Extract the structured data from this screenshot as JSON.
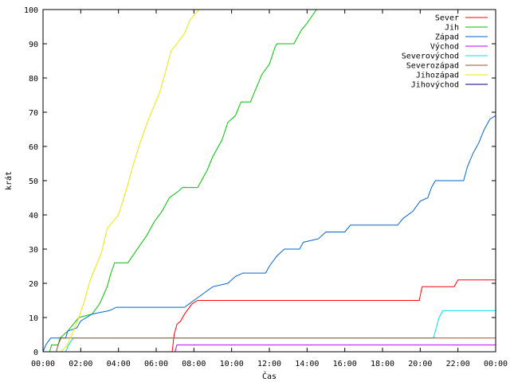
{
  "chart_data": {
    "type": "line",
    "title": "",
    "xlabel": "Čas",
    "ylabel": "krát",
    "ylim": [
      0,
      100
    ],
    "xlim_hours": [
      0,
      24
    ],
    "grid": false,
    "legend_position": "top-right",
    "x_ticks": [
      {
        "h": 0,
        "label": "00:00"
      },
      {
        "h": 2,
        "label": "02:00"
      },
      {
        "h": 4,
        "label": "04:00"
      },
      {
        "h": 6,
        "label": "06:00"
      },
      {
        "h": 8,
        "label": "08:00"
      },
      {
        "h": 10,
        "label": "10:00"
      },
      {
        "h": 12,
        "label": "12:00"
      },
      {
        "h": 14,
        "label": "14:00"
      },
      {
        "h": 16,
        "label": "16:00"
      },
      {
        "h": 18,
        "label": "18:00"
      },
      {
        "h": 20,
        "label": "20:00"
      },
      {
        "h": 22,
        "label": "22:00"
      },
      {
        "h": 24,
        "label": "00:00"
      }
    ],
    "y_ticks": [
      0,
      10,
      20,
      30,
      40,
      50,
      60,
      70,
      80,
      90,
      100
    ],
    "series": [
      {
        "name": "Sever",
        "color": "#ff0000",
        "points": [
          [
            6.85,
            0
          ],
          [
            6.95,
            5
          ],
          [
            7.1,
            8
          ],
          [
            7.3,
            9
          ],
          [
            7.5,
            11
          ],
          [
            7.9,
            14
          ],
          [
            8.2,
            15
          ],
          [
            19.95,
            15
          ],
          [
            20.1,
            19
          ],
          [
            21.8,
            19
          ],
          [
            22.0,
            21
          ],
          [
            24.0,
            21
          ]
        ]
      },
      {
        "name": "Jih",
        "color": "#00c000",
        "points": [
          [
            0.35,
            0
          ],
          [
            0.45,
            2
          ],
          [
            0.8,
            2
          ],
          [
            0.9,
            4
          ],
          [
            1.3,
            6
          ],
          [
            1.6,
            8
          ],
          [
            1.9,
            10
          ],
          [
            2.6,
            11
          ],
          [
            3.0,
            14
          ],
          [
            3.4,
            19
          ],
          [
            3.6,
            23
          ],
          [
            3.8,
            26
          ],
          [
            4.5,
            26
          ],
          [
            5.0,
            30
          ],
          [
            5.5,
            34
          ],
          [
            5.9,
            38
          ],
          [
            6.3,
            41
          ],
          [
            6.7,
            45
          ],
          [
            7.2,
            47
          ],
          [
            7.4,
            48
          ],
          [
            8.2,
            48
          ],
          [
            8.7,
            53
          ],
          [
            9.0,
            57
          ],
          [
            9.5,
            62
          ],
          [
            9.8,
            67
          ],
          [
            10.2,
            69
          ],
          [
            10.5,
            73
          ],
          [
            11.0,
            73
          ],
          [
            11.3,
            77
          ],
          [
            11.6,
            81
          ],
          [
            12.0,
            84
          ],
          [
            12.3,
            89
          ],
          [
            12.4,
            90
          ],
          [
            13.3,
            90
          ],
          [
            13.7,
            94
          ],
          [
            14.0,
            96
          ],
          [
            14.5,
            100
          ]
        ]
      },
      {
        "name": "Západ",
        "color": "#0066cc",
        "points": [
          [
            0,
            0
          ],
          [
            0.15,
            2
          ],
          [
            0.4,
            4
          ],
          [
            1.2,
            4
          ],
          [
            1.3,
            6
          ],
          [
            1.8,
            7
          ],
          [
            2.0,
            9
          ],
          [
            2.6,
            11
          ],
          [
            3.5,
            12
          ],
          [
            3.9,
            13
          ],
          [
            7.5,
            13
          ],
          [
            8.0,
            15
          ],
          [
            8.5,
            17
          ],
          [
            9.0,
            19
          ],
          [
            9.8,
            20
          ],
          [
            10.2,
            22
          ],
          [
            10.6,
            23
          ],
          [
            11.8,
            23
          ],
          [
            12.0,
            25
          ],
          [
            12.4,
            28
          ],
          [
            12.8,
            30
          ],
          [
            13.6,
            30
          ],
          [
            13.8,
            32
          ],
          [
            14.6,
            33
          ],
          [
            15.0,
            35
          ],
          [
            16.0,
            35
          ],
          [
            16.3,
            37
          ],
          [
            18.8,
            37
          ],
          [
            19.1,
            39
          ],
          [
            19.6,
            41
          ],
          [
            20.0,
            44
          ],
          [
            20.4,
            45
          ],
          [
            20.6,
            48
          ],
          [
            20.8,
            50
          ],
          [
            22.3,
            50
          ],
          [
            22.5,
            54
          ],
          [
            22.8,
            58
          ],
          [
            23.1,
            61
          ],
          [
            23.4,
            65
          ],
          [
            23.7,
            68
          ],
          [
            24.0,
            69
          ]
        ]
      },
      {
        "name": "Východ",
        "color": "#c000ff",
        "points": [
          [
            7.0,
            0
          ],
          [
            7.1,
            2
          ],
          [
            24.0,
            2
          ]
        ]
      },
      {
        "name": "Severovýchod",
        "color": "#00e0e0",
        "points": [
          [
            1.2,
            0
          ],
          [
            1.35,
            2
          ],
          [
            1.6,
            4
          ],
          [
            20.7,
            4
          ],
          [
            21.0,
            10
          ],
          [
            21.2,
            12
          ],
          [
            24.0,
            12
          ]
        ]
      },
      {
        "name": "Severozápad",
        "color": "#a0522d",
        "points": [
          [
            0.7,
            0
          ],
          [
            0.8,
            2
          ],
          [
            0.95,
            4
          ],
          [
            24.0,
            4
          ]
        ]
      },
      {
        "name": "Jihozápad",
        "color": "#e8e800",
        "points": [
          [
            0.95,
            0
          ],
          [
            1.3,
            2
          ],
          [
            1.6,
            6
          ],
          [
            1.9,
            10
          ],
          [
            2.2,
            15
          ],
          [
            2.5,
            21
          ],
          [
            2.8,
            25
          ],
          [
            3.1,
            29
          ],
          [
            3.4,
            36
          ],
          [
            3.7,
            38
          ],
          [
            4.0,
            40
          ],
          [
            4.4,
            47
          ],
          [
            4.8,
            55
          ],
          [
            5.2,
            62
          ],
          [
            5.6,
            68
          ],
          [
            5.9,
            72
          ],
          [
            6.2,
            76
          ],
          [
            6.5,
            82
          ],
          [
            6.8,
            88
          ],
          [
            7.1,
            90
          ],
          [
            7.5,
            93
          ],
          [
            7.8,
            97
          ],
          [
            8.1,
            99
          ],
          [
            8.3,
            100
          ]
        ]
      },
      {
        "name": "Jihovýchod",
        "color": "#000080",
        "points": []
      }
    ]
  }
}
